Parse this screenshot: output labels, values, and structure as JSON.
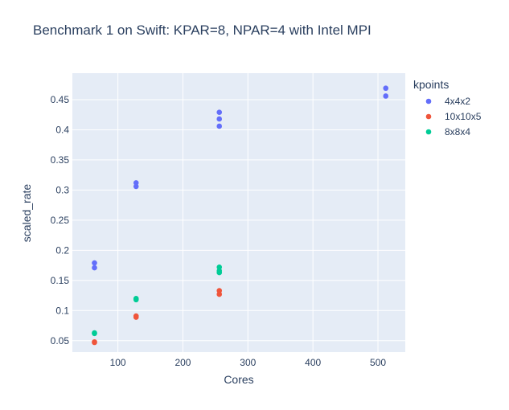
{
  "chart_data": {
    "type": "scatter",
    "title": "Benchmark 1 on Swift: KPAR=8, NPAR=4 with Intel MPI",
    "xlabel": "Cores",
    "ylabel": "scaled_rate",
    "xlim": [
      30,
      542
    ],
    "ylim": [
      0.031,
      0.494
    ],
    "xticks": [
      {
        "value": 100,
        "label": "100"
      },
      {
        "value": 200,
        "label": "200"
      },
      {
        "value": 300,
        "label": "300"
      },
      {
        "value": 400,
        "label": "400"
      },
      {
        "value": 500,
        "label": "500"
      }
    ],
    "yticks": [
      {
        "value": 0.05,
        "label": "0.05"
      },
      {
        "value": 0.1,
        "label": "0.1"
      },
      {
        "value": 0.15,
        "label": "0.15"
      },
      {
        "value": 0.2,
        "label": "0.2"
      },
      {
        "value": 0.25,
        "label": "0.25"
      },
      {
        "value": 0.3,
        "label": "0.3"
      },
      {
        "value": 0.35,
        "label": "0.35"
      },
      {
        "value": 0.4,
        "label": "0.4"
      },
      {
        "value": 0.45,
        "label": "0.45"
      }
    ],
    "grid": true,
    "legend_title": "kpoints",
    "legend_position": "top-right",
    "series": [
      {
        "name": "4x4x2",
        "color": "#636efa",
        "points": [
          {
            "x": 64,
            "y": 0.179
          },
          {
            "x": 64,
            "y": 0.171
          },
          {
            "x": 128,
            "y": 0.312
          },
          {
            "x": 128,
            "y": 0.306
          },
          {
            "x": 256,
            "y": 0.429
          },
          {
            "x": 256,
            "y": 0.418
          },
          {
            "x": 256,
            "y": 0.406
          },
          {
            "x": 512,
            "y": 0.469
          },
          {
            "x": 512,
            "y": 0.456
          }
        ]
      },
      {
        "name": "10x10x5",
        "color": "#ef553b",
        "points": [
          {
            "x": 64,
            "y": 0.048
          },
          {
            "x": 64,
            "y": 0.047
          },
          {
            "x": 128,
            "y": 0.091
          },
          {
            "x": 128,
            "y": 0.089
          },
          {
            "x": 256,
            "y": 0.133
          },
          {
            "x": 256,
            "y": 0.127
          }
        ]
      },
      {
        "name": "8x8x4",
        "color": "#00cc96",
        "points": [
          {
            "x": 64,
            "y": 0.063
          },
          {
            "x": 64,
            "y": 0.062
          },
          {
            "x": 128,
            "y": 0.12
          },
          {
            "x": 128,
            "y": 0.118
          },
          {
            "x": 256,
            "y": 0.172
          },
          {
            "x": 256,
            "y": 0.166
          },
          {
            "x": 256,
            "y": 0.163
          }
        ]
      }
    ]
  },
  "colors": {
    "plot_background": "#e5ecf6",
    "gridline": "#ffffff",
    "text": "#2a3f5f"
  }
}
